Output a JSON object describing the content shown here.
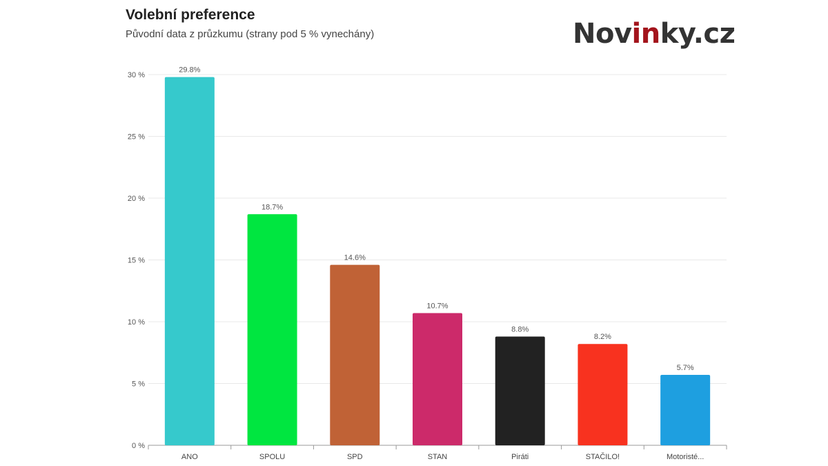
{
  "header": {
    "title": "Volební preference",
    "subtitle": "Původní data z průzkumu (strany pod 5 % vynechány)"
  },
  "logo": {
    "pre": "Nov",
    "highlight": "in",
    "post": "ky.cz",
    "highlight_color": "#a3141c"
  },
  "chart_data": {
    "type": "bar",
    "title": "Volební preference",
    "subtitle": "Původní data z průzkumu (strany pod 5 % vynechány)",
    "categories": [
      "ANO",
      "SPOLU",
      "SPD",
      "STAN",
      "Piráti",
      "STAČILO!",
      "Motoristé..."
    ],
    "values": [
      29.8,
      18.7,
      14.6,
      10.7,
      8.8,
      8.2,
      5.7
    ],
    "data_labels": [
      "29.8%",
      "18.7%",
      "14.6%",
      "10.7%",
      "8.8%",
      "8.2%",
      "5.7%"
    ],
    "colors": [
      "#36c9cc",
      "#00e640",
      "#c06236",
      "#cc2a6a",
      "#222222",
      "#f8321f",
      "#1e9fe0"
    ],
    "y_ticks": [
      0,
      5,
      10,
      15,
      20,
      25,
      30
    ],
    "y_tick_labels": [
      "0 %",
      "5 %",
      "10 %",
      "15 %",
      "20 %",
      "25 %",
      "30 %"
    ],
    "ylim": [
      0,
      30
    ],
    "xlabel": "",
    "ylabel": "",
    "grid": true,
    "legend": "none"
  }
}
